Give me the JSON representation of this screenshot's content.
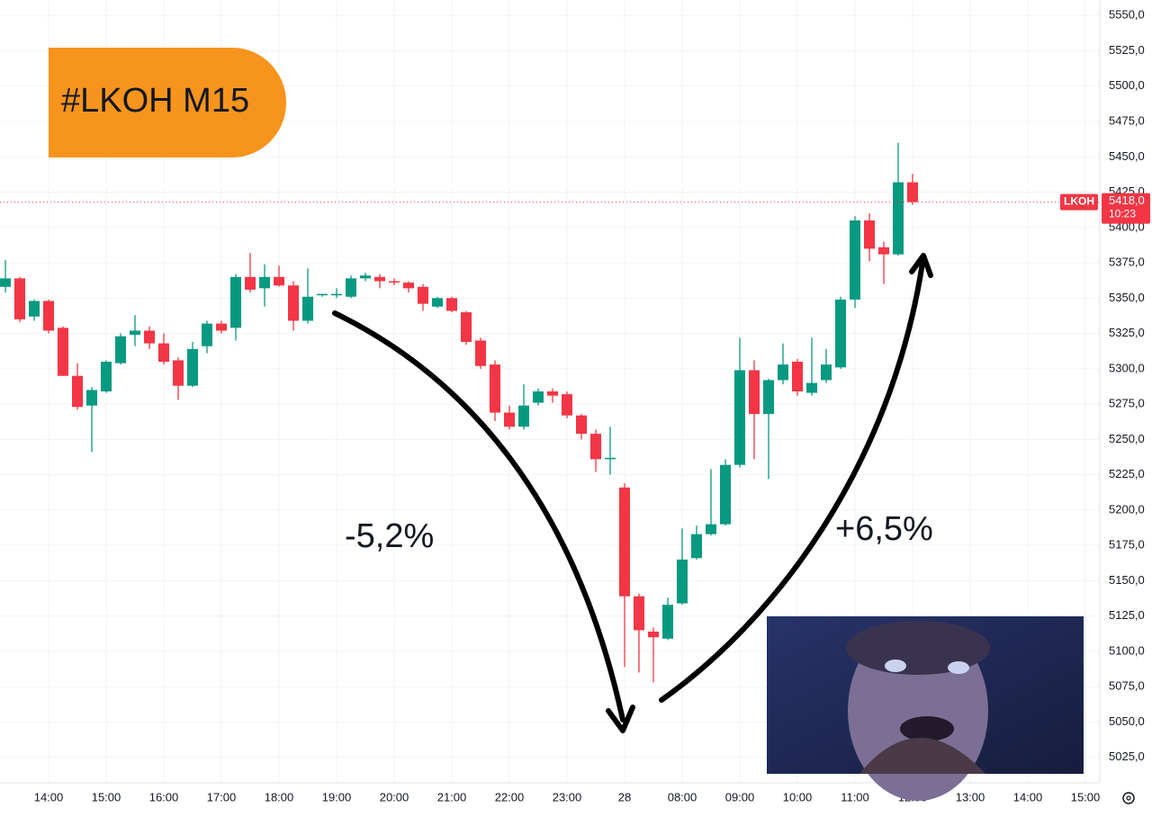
{
  "chart_data": {
    "type": "candlestick",
    "title": "#LKOH M15",
    "annotations": [
      "-5,2%",
      "+6,5%"
    ],
    "symbol": "LKOH",
    "last_price": {
      "value": 5418,
      "label": "5418,0"
    },
    "last_time": "10:23",
    "up_color": "#089981",
    "down_color": "#f23645",
    "grid": true,
    "categories": [
      null,
      null,
      null,
      "14:00",
      null,
      null,
      null,
      "15:00",
      null,
      null,
      null,
      "16:00",
      null,
      null,
      null,
      "17:00",
      null,
      null,
      null,
      "18:00",
      null,
      null,
      null,
      "19:00",
      null,
      null,
      null,
      "20:00",
      null,
      null,
      null,
      "21:00",
      null,
      null,
      null,
      "22:00",
      null,
      null,
      null,
      "23:00",
      null,
      null,
      null,
      "28",
      null,
      null,
      null,
      "08:00",
      null,
      null,
      null,
      "09:00",
      null,
      null,
      null,
      "10:00",
      null,
      null,
      null,
      "11:00",
      null,
      null,
      null,
      "12:00",
      null,
      null,
      null,
      "13:00",
      null,
      null,
      null,
      "14:00",
      null,
      null,
      null,
      "15:00"
    ],
    "open": [
      5358,
      5364,
      5337,
      5348,
      5329,
      5295,
      5274,
      5284,
      5304,
      5324,
      5327,
      5318,
      5306,
      5288,
      5316,
      5332,
      5329,
      5365,
      5357,
      5365,
      5359,
      5334,
      5352,
      5352,
      5351,
      5364,
      5365,
      5362,
      5361,
      5358,
      5344,
      5350,
      5340,
      5320,
      5303,
      5269,
      5259,
      5276,
      5284,
      5282,
      5267,
      5254,
      5236,
      5216,
      5139,
      5114,
      5109,
      5134,
      5166,
      5183,
      5190,
      5232,
      5299,
      5268,
      5292,
      5305,
      5283,
      5292,
      5301,
      5349,
      5405,
      5386,
      5381,
      5432,
      null,
      null,
      null,
      null,
      null,
      null,
      null,
      null,
      null,
      null,
      null,
      null
    ],
    "high": [
      5377,
      5365,
      5349,
      5349,
      5330,
      5304,
      5287,
      5306,
      5325,
      5338,
      5330,
      5325,
      5308,
      5319,
      5334,
      5334,
      5367,
      5382,
      5374,
      5373,
      5362,
      5371,
      5353,
      5357,
      5366,
      5368,
      5367,
      5364,
      5362,
      5360,
      5351,
      5351,
      5341,
      5322,
      5306,
      5274,
      5289,
      5286,
      5286,
      5284,
      5268,
      5257,
      5259,
      5219,
      5141,
      5117,
      5138,
      5187,
      5189,
      5229,
      5236,
      5322,
      5306,
      5293,
      5318,
      5307,
      5322,
      5314,
      5351,
      5408,
      5410,
      5390,
      5460,
      5438,
      null,
      null,
      null,
      null,
      null,
      null,
      null,
      null,
      null,
      null,
      null,
      null
    ],
    "low": [
      5354,
      5333,
      5334,
      5325,
      5295,
      5271,
      5241,
      5283,
      5303,
      5316,
      5314,
      5303,
      5278,
      5287,
      5311,
      5325,
      5320,
      5354,
      5344,
      5358,
      5327,
      5332,
      5351,
      5350,
      5350,
      5362,
      5357,
      5359,
      5354,
      5341,
      5343,
      5340,
      5317,
      5300,
      5263,
      5257,
      5257,
      5274,
      5276,
      5265,
      5250,
      5227,
      5225,
      5089,
      5085,
      5078,
      5108,
      5133,
      5165,
      5182,
      5189,
      5230,
      5236,
      5222,
      5289,
      5281,
      5281,
      5290,
      5300,
      5343,
      5376,
      5360,
      5380,
      5416,
      null,
      null,
      null,
      null,
      null,
      null,
      null,
      null,
      null,
      null,
      null,
      null
    ],
    "close": [
      5364,
      5335,
      5348,
      5327,
      5295,
      5273,
      5285,
      5305,
      5323,
      5327,
      5318,
      5305,
      5288,
      5314,
      5332,
      5327,
      5365,
      5356,
      5365,
      5359,
      5334,
      5351,
      5353,
      5353,
      5364,
      5366,
      5362,
      5361,
      5357,
      5346,
      5350,
      5341,
      5319,
      5302,
      5269,
      5259,
      5274,
      5284,
      5281,
      5267,
      5254,
      5236,
      5237,
      5139,
      5115,
      5110,
      5133,
      5165,
      5183,
      5190,
      5232,
      5299,
      5268,
      5292,
      5303,
      5284,
      5290,
      5303,
      5349,
      5405,
      5385,
      5381,
      5432,
      5418,
      null,
      null,
      null,
      null,
      null,
      null,
      null,
      null,
      null,
      null,
      null,
      null
    ],
    "ylim": [
      5007,
      5561
    ],
    "yticks": [
      {
        "value": 5025,
        "label": "5025,0"
      },
      {
        "value": 5050,
        "label": "5050,0"
      },
      {
        "value": 5075,
        "label": "5075,0"
      },
      {
        "value": 5100,
        "label": "5100,0"
      },
      {
        "value": 5125,
        "label": "5125,0"
      },
      {
        "value": 5150,
        "label": "5150,0"
      },
      {
        "value": 5175,
        "label": "5175,0"
      },
      {
        "value": 5200,
        "label": "5200,0"
      },
      {
        "value": 5225,
        "label": "5225,0"
      },
      {
        "value": 5250,
        "label": "5250,0"
      },
      {
        "value": 5275,
        "label": "5275,0"
      },
      {
        "value": 5300,
        "label": "5300,0"
      },
      {
        "value": 5325,
        "label": "5325,0"
      },
      {
        "value": 5350,
        "label": "5350,0"
      },
      {
        "value": 5375,
        "label": "5375,0"
      },
      {
        "value": 5400,
        "label": "5400,0"
      },
      {
        "value": 5425,
        "label": "5425,0"
      },
      {
        "value": 5450,
        "label": "5450,0"
      },
      {
        "value": 5475,
        "label": "5475,0"
      },
      {
        "value": 5500,
        "label": "5500,0"
      },
      {
        "value": 5525,
        "label": "5525,0"
      },
      {
        "value": 5550,
        "label": "5550,0"
      }
    ]
  }
}
